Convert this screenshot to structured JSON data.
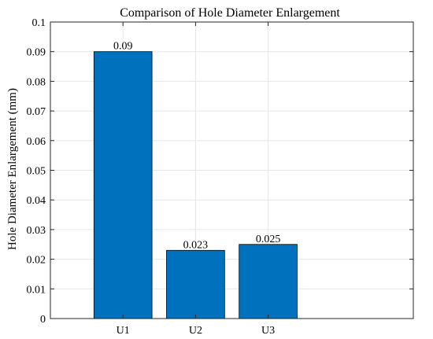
{
  "chart_data": {
    "type": "bar",
    "title": "Comparison of Hole Diameter Enlargement",
    "xlabel": "",
    "ylabel": "Hole Diameter Enlargement (mm)",
    "categories": [
      "U1",
      "U2",
      "U3"
    ],
    "values": [
      0.09,
      0.023,
      0.025
    ],
    "data_labels": [
      "0.09",
      "0.023",
      "0.025"
    ],
    "ylim": [
      0,
      0.1
    ],
    "yticks": [
      0,
      0.01,
      0.02,
      0.03,
      0.04,
      0.05,
      0.06,
      0.07,
      0.08,
      0.09,
      0.1
    ],
    "ytick_labels": [
      "0",
      "0.01",
      "0.02",
      "0.03",
      "0.04",
      "0.05",
      "0.06",
      "0.07",
      "0.08",
      "0.09",
      "0.1"
    ],
    "grid": true,
    "bar_color": "#0072BD"
  }
}
